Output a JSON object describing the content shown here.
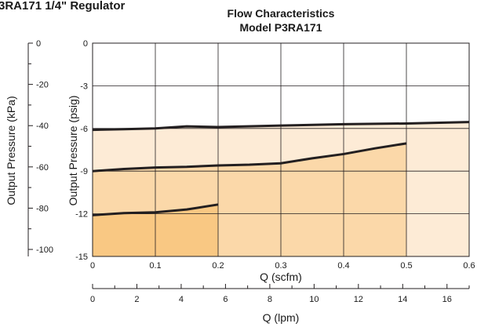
{
  "page_heading": "3RA171 1/4\" Regulator",
  "chart_data": {
    "type": "line",
    "title": "Flow Characteristics",
    "subtitle": "Model P3RA171",
    "colors": {
      "band_1": "#fdebd6",
      "band_2": "#fbd8a9",
      "band_3": "#f9c883",
      "line": "#231f20",
      "grid": "#231f20"
    },
    "grid": true,
    "x_axis": {
      "label": "Q (scfm)",
      "lim": [
        0,
        0.6
      ],
      "ticks": [
        0,
        0.1,
        0.2,
        0.3,
        0.4,
        0.5,
        0.6
      ],
      "tick_labels": [
        "0",
        "0.1",
        "0.2",
        "0.3",
        "0.4",
        "0.5",
        "0.6"
      ]
    },
    "x_axis_secondary": {
      "label": "Q (lpm)",
      "lim": [
        0,
        17
      ],
      "ticks": [
        0,
        2,
        4,
        6,
        8,
        10,
        12,
        14,
        16
      ],
      "tick_labels": [
        "0",
        "2",
        "4",
        "6",
        "8",
        "10",
        "12",
        "14",
        "16"
      ]
    },
    "y_axis": {
      "label": "Output Pressure (psig)",
      "lim": [
        -15,
        0
      ],
      "ticks": [
        0,
        -3,
        -6,
        -9,
        -12,
        -15
      ],
      "tick_labels": [
        "0",
        "-3",
        "-6",
        "-9",
        "-12",
        "-15"
      ]
    },
    "y_axis_secondary": {
      "label": "Output Pressure (kPa)",
      "lim": [
        -103.4,
        0
      ],
      "ticks": [
        0,
        -20,
        -40,
        -60,
        -80,
        -100
      ],
      "tick_labels": [
        "0",
        "-20",
        "-40",
        "-60",
        "-80",
        "-100"
      ]
    },
    "series": [
      {
        "x": [
          0,
          0.05,
          0.1,
          0.15,
          0.2,
          0.3,
          0.4,
          0.5,
          0.6
        ],
        "y": [
          -6.1,
          -6.05,
          -6.0,
          -5.85,
          -5.9,
          -5.8,
          -5.7,
          -5.65,
          -5.55
        ]
      },
      {
        "x": [
          0,
          0.05,
          0.1,
          0.15,
          0.2,
          0.25,
          0.3,
          0.35,
          0.4,
          0.45,
          0.5
        ],
        "y": [
          -9.0,
          -8.85,
          -8.75,
          -8.7,
          -8.6,
          -8.55,
          -8.45,
          -8.1,
          -7.8,
          -7.4,
          -7.05
        ]
      },
      {
        "x": [
          0,
          0.05,
          0.1,
          0.15,
          0.2
        ],
        "y": [
          -12.1,
          -11.95,
          -11.9,
          -11.7,
          -11.35
        ]
      }
    ]
  }
}
